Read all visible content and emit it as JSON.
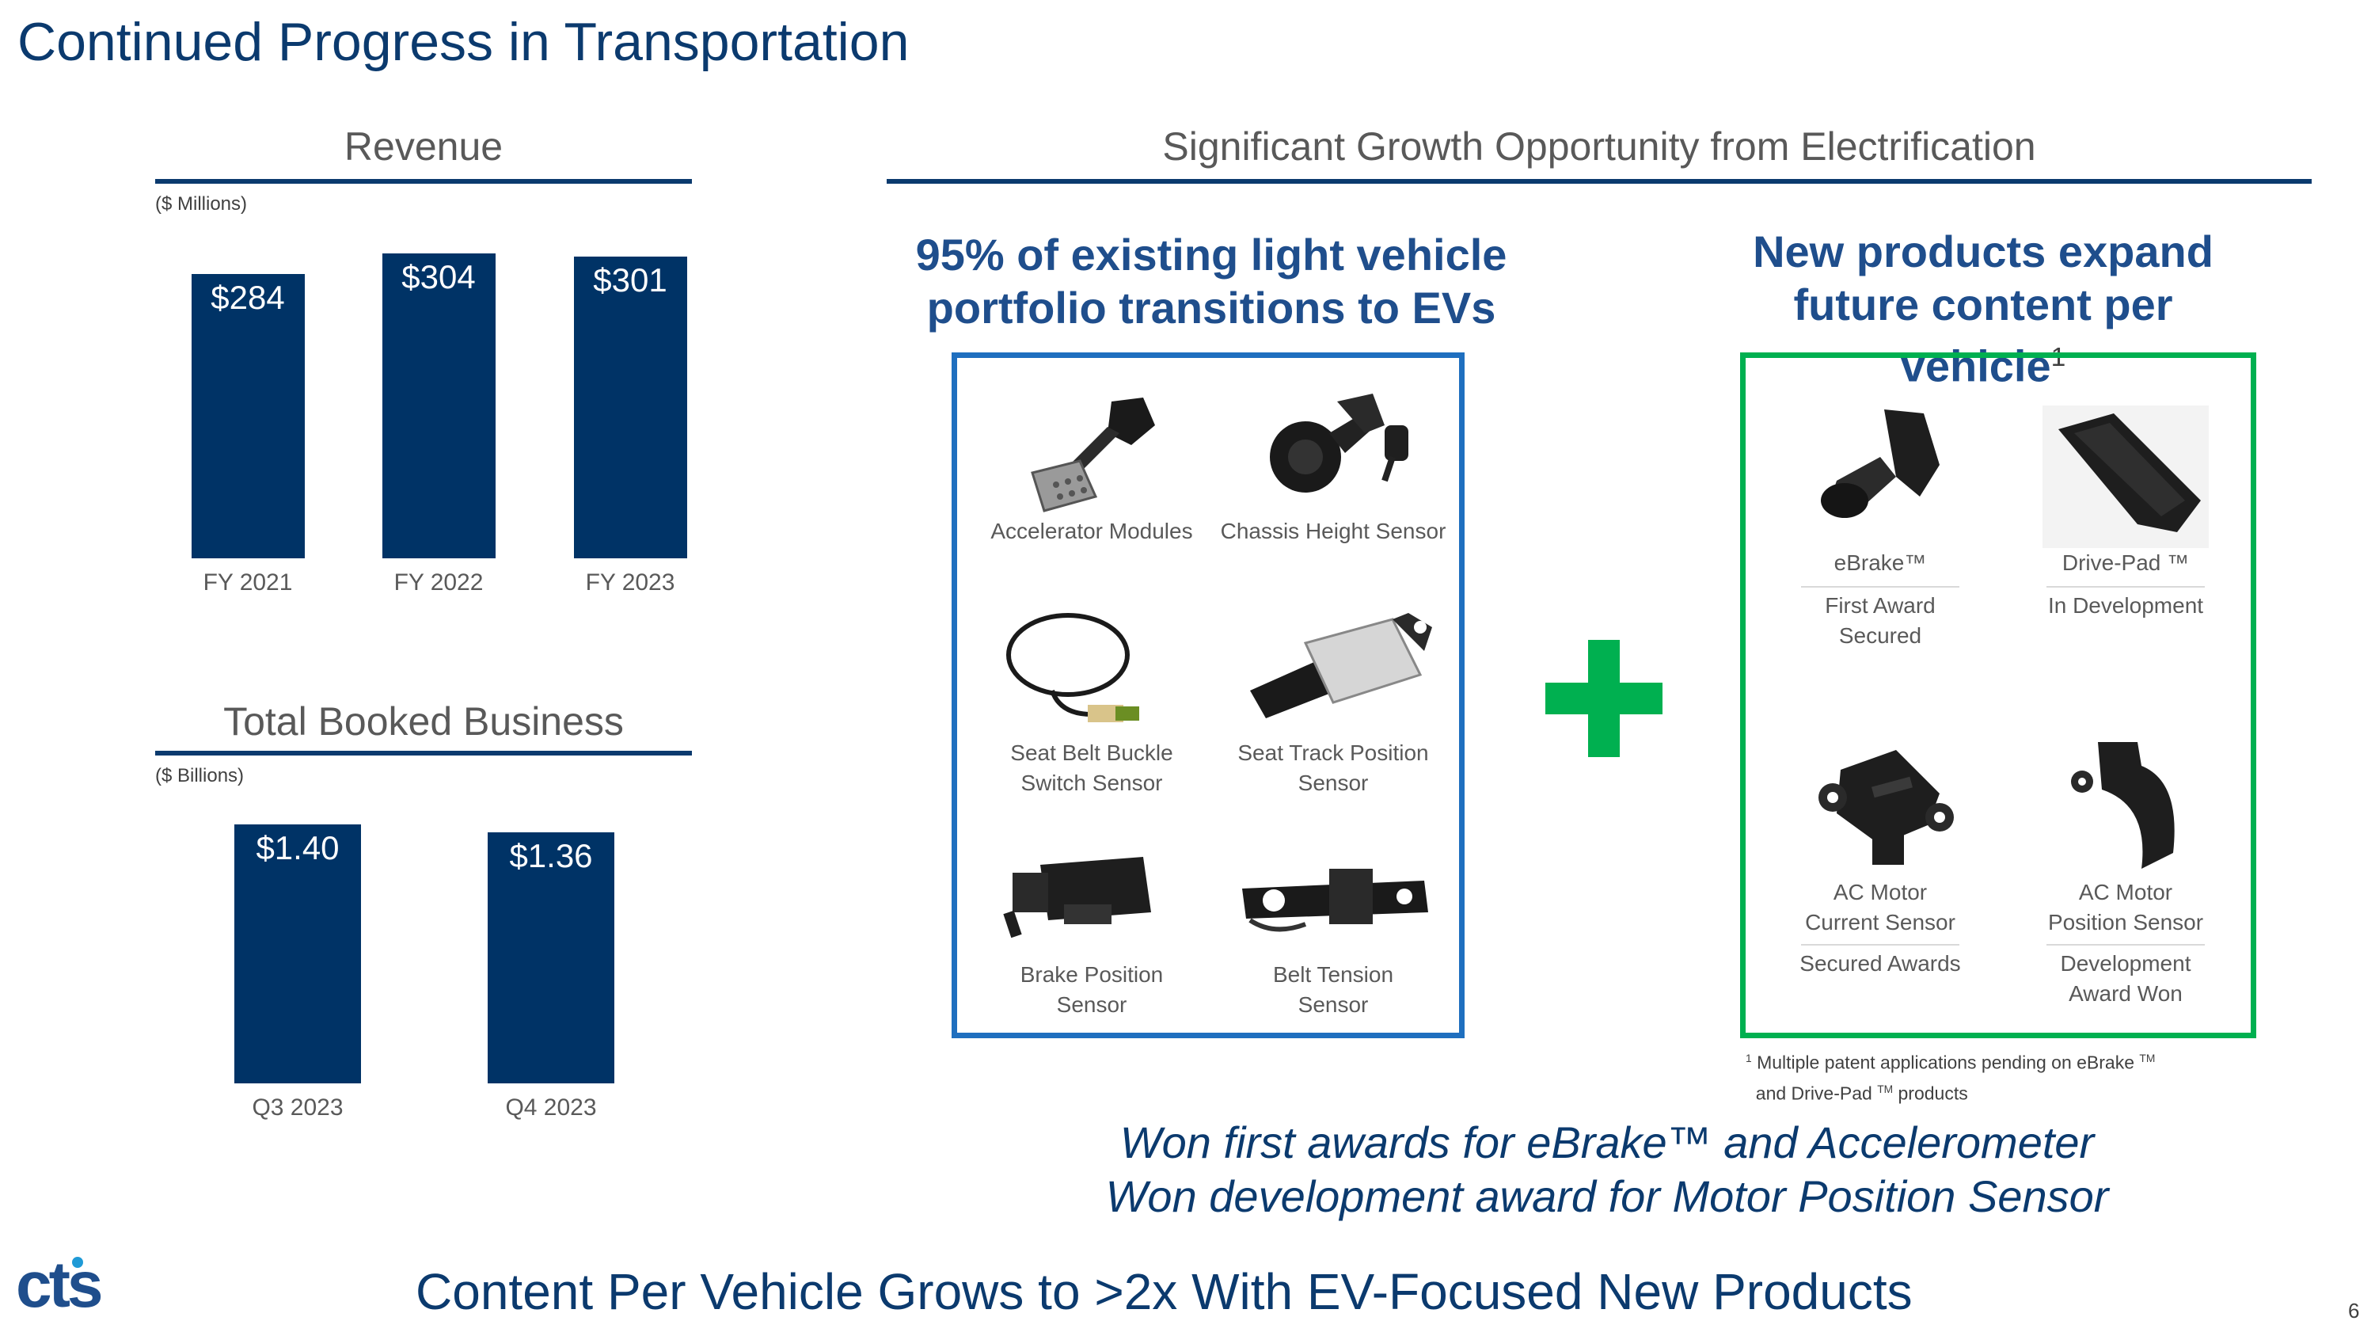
{
  "page": {
    "title": "Continued Progress in Transportation",
    "page_number": "6",
    "footer": "Content Per Vehicle Grows to >2x With EV-Focused New Products",
    "logo_text": "cts"
  },
  "revenue": {
    "title": "Revenue",
    "unit": "($ Millions)"
  },
  "booked": {
    "title": "Total Booked Business",
    "unit": "($ Billions)"
  },
  "chart_data": [
    {
      "type": "bar",
      "title": "Revenue",
      "ylabel": "($ Millions)",
      "categories": [
        "FY 2021",
        "FY 2022",
        "FY 2023"
      ],
      "values": [
        284,
        304,
        301
      ],
      "labels": [
        "$284",
        "$304",
        "$301"
      ],
      "ylim": [
        0,
        320
      ]
    },
    {
      "type": "bar",
      "title": "Total Booked Business",
      "ylabel": "($ Billions)",
      "categories": [
        "Q3 2023",
        "Q4 2023"
      ],
      "values": [
        1.4,
        1.36
      ],
      "labels": [
        "$1.40",
        "$1.36"
      ],
      "ylim": [
        0,
        1.5
      ]
    }
  ],
  "growth": {
    "title": "Significant Growth Opportunity from Electrification",
    "existing_head_line1": "95% of existing light vehicle",
    "existing_head_line2": "portfolio transitions to EVs",
    "new_head_line1": "New products expand",
    "new_head_line2": "future content per",
    "new_head_line3": "vehicle",
    "new_head_sup": "1",
    "existing_products": [
      {
        "line1": "Accelerator Modules",
        "line2": ""
      },
      {
        "line1": "Chassis Height Sensor",
        "line2": ""
      },
      {
        "line1": "Seat Belt Buckle",
        "line2": "Switch Sensor"
      },
      {
        "line1": "Seat Track Position",
        "line2": "Sensor"
      },
      {
        "line1": "Brake Position",
        "line2": "Sensor"
      },
      {
        "line1": "Belt Tension",
        "line2": "Sensor"
      }
    ],
    "new_products": [
      {
        "name_line1": "eBrake™",
        "name_line2": "",
        "status_line1": "First Award",
        "status_line2": "Secured"
      },
      {
        "name_line1": "Drive-Pad ™",
        "name_line2": "",
        "status_line1": "In Development",
        "status_line2": ""
      },
      {
        "name_line1": "AC Motor",
        "name_line2": "Current Sensor",
        "status_line1": "Secured Awards",
        "status_line2": ""
      },
      {
        "name_line1": "AC Motor",
        "name_line2": "Position Sensor",
        "status_line1": "Development",
        "status_line2": "Award Won"
      }
    ],
    "footnote_sup": "1",
    "footnote_part1": "Multiple patent applications pending on eBrake",
    "footnote_tm1": "TM",
    "footnote_part2": "and Drive-Pad",
    "footnote_tm2": "TM",
    "footnote_part3": "products",
    "plus_symbol": "+",
    "plus_color": "#00b050",
    "existing_box_color": "#1f6fbf",
    "new_box_color": "#00b050"
  },
  "awards": {
    "line1": "Won first awards for eBrake™ and Accelerometer",
    "line2": "Won development award for Motor Position Sensor"
  }
}
